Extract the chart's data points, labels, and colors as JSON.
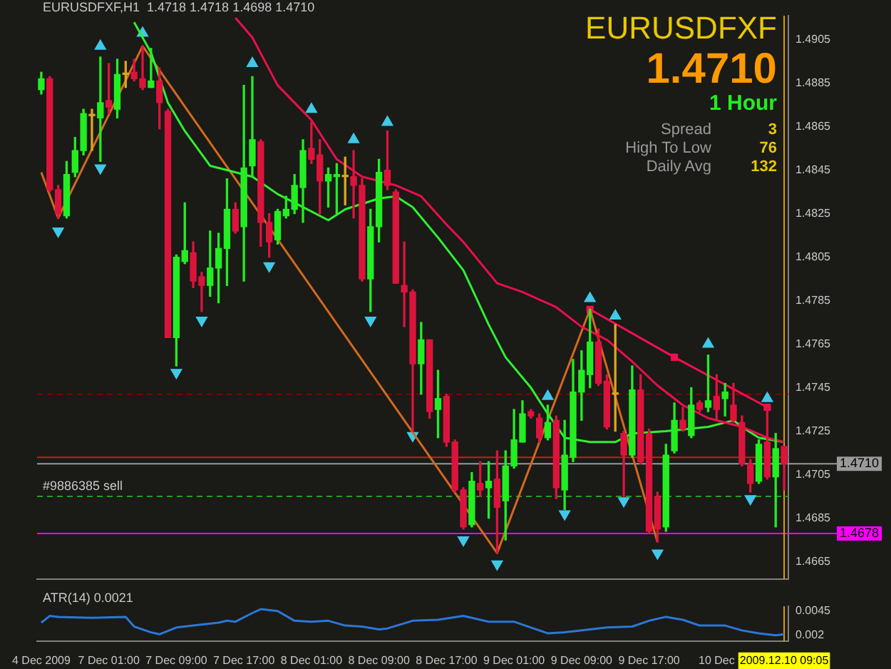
{
  "chart_data": [
    {
      "type": "candlestick",
      "title": "EURUSDFXF,H1  1.4718 1.4718 1.4698 1.4710",
      "tick_labels": "y",
      "categories": [
        "4 Dec 2009",
        null,
        null,
        null,
        null,
        null,
        null,
        null,
        "7 Dec 01:00",
        null,
        null,
        null,
        null,
        null,
        null,
        null,
        "7 Dec 09:00",
        null,
        null,
        null,
        null,
        null,
        null,
        null,
        "7 Dec 17:00",
        null,
        null,
        null,
        null,
        null,
        null,
        null,
        "8 Dec 01:00",
        null,
        null,
        null,
        null,
        null,
        null,
        null,
        "8 Dec 09:00",
        null,
        null,
        null,
        null,
        null,
        null,
        null,
        "8 Dec 17:00",
        null,
        null,
        null,
        null,
        null,
        null,
        null,
        "9 Dec 01:00",
        null,
        null,
        null,
        null,
        null,
        null,
        null,
        "9 Dec 09:00",
        null,
        null,
        null,
        null,
        null,
        null,
        null,
        "9 Dec 17:00",
        null,
        null,
        null,
        null,
        null,
        null,
        null,
        "10 Dec",
        null,
        null,
        null,
        null,
        null,
        null,
        null,
        "2009.12.10 09:05"
      ],
      "ylim": [
        1.4657,
        1.4916
      ],
      "yticks": [
        1.4905,
        1.4885,
        1.4865,
        1.4845,
        1.4825,
        1.4805,
        1.4785,
        1.4765,
        1.4745,
        1.4725,
        1.4705,
        1.4685,
        1.4665
      ],
      "ohlc": [
        [
          1.4882,
          1.489,
          1.488,
          1.4887
        ],
        [
          1.4887,
          1.4888,
          1.4835,
          1.4836
        ],
        [
          1.4836,
          1.4838,
          1.4823,
          1.4825
        ],
        [
          1.4824,
          1.4849,
          1.4823,
          1.4843
        ],
        [
          1.4844,
          1.486,
          1.4842,
          1.4854
        ],
        [
          1.4854,
          1.4873,
          1.4852,
          1.4871
        ],
        [
          1.487,
          1.4873,
          1.4854,
          1.487
        ],
        [
          1.4869,
          1.4897,
          1.4849,
          1.4876
        ],
        [
          1.4877,
          1.4894,
          1.4871,
          1.4874
        ],
        [
          1.4873,
          1.4896,
          1.4869,
          1.4889
        ],
        [
          1.4889,
          1.4895,
          1.4883,
          1.4889
        ],
        [
          1.489,
          1.4896,
          1.4886,
          1.4887
        ],
        [
          1.4887,
          1.4902,
          1.4882,
          1.4883
        ],
        [
          1.4883,
          1.4901,
          1.4883,
          1.4886
        ],
        [
          1.4886,
          1.4892,
          1.4864,
          1.4876
        ],
        [
          1.4872,
          1.4873,
          1.4768,
          1.4768
        ],
        [
          1.4768,
          1.4806,
          1.4755,
          1.4805
        ],
        [
          1.4803,
          1.483,
          1.4802,
          1.4808
        ],
        [
          1.4807,
          1.4812,
          1.4791,
          1.4794
        ],
        [
          1.4796,
          1.4798,
          1.478,
          1.4792
        ],
        [
          1.4792,
          1.4817,
          1.4787,
          1.48
        ],
        [
          1.48,
          1.4816,
          1.4784,
          1.4809
        ],
        [
          1.4809,
          1.4841,
          1.4792,
          1.4827
        ],
        [
          1.4827,
          1.483,
          1.4816,
          1.4817
        ],
        [
          1.4819,
          1.4884,
          1.4794,
          1.4846
        ],
        [
          1.4847,
          1.4888,
          1.4842,
          1.4859
        ],
        [
          1.4858,
          1.4859,
          1.481,
          1.4821
        ],
        [
          1.4821,
          1.4825,
          1.4805,
          1.4812
        ],
        [
          1.4813,
          1.4827,
          1.4811,
          1.4826
        ],
        [
          1.4824,
          1.4833,
          1.4823,
          1.4827
        ],
        [
          1.4827,
          1.4843,
          1.4825,
          1.4838
        ],
        [
          1.4837,
          1.4859,
          1.4821,
          1.4854
        ],
        [
          1.4855,
          1.4867,
          1.4848,
          1.485
        ],
        [
          1.4852,
          1.4859,
          1.4825,
          1.484
        ],
        [
          1.484,
          1.4846,
          1.4828,
          1.4843
        ],
        [
          1.4842,
          1.4848,
          1.4825,
          1.4843
        ],
        [
          1.4842,
          1.4851,
          1.4829,
          1.4842
        ],
        [
          1.4842,
          1.4854,
          1.4823,
          1.4838
        ],
        [
          1.4838,
          1.4841,
          1.4794,
          1.4795
        ],
        [
          1.4795,
          1.4827,
          1.478,
          1.4819
        ],
        [
          1.4819,
          1.485,
          1.4812,
          1.4844
        ],
        [
          1.4845,
          1.4863,
          1.4836,
          1.4838
        ],
        [
          1.4835,
          1.4836,
          1.4793,
          1.4793
        ],
        [
          1.4792,
          1.4812,
          1.4773,
          1.4789
        ],
        [
          1.4789,
          1.479,
          1.4725,
          1.4756
        ],
        [
          1.4756,
          1.4775,
          1.4742,
          1.4767
        ],
        [
          1.4767,
          1.4767,
          1.4731,
          1.4734
        ],
        [
          1.4735,
          1.4753,
          1.4722,
          1.474
        ],
        [
          1.4741,
          1.4742,
          1.4718,
          1.472
        ],
        [
          1.472,
          1.4721,
          1.4697,
          1.4698
        ],
        [
          1.4698,
          1.4699,
          1.468,
          1.4681
        ],
        [
          1.4682,
          1.4706,
          1.4681,
          1.4702
        ],
        [
          1.4701,
          1.4711,
          1.4695,
          1.4698
        ],
        [
          1.4699,
          1.4711,
          1.4685,
          1.4702
        ],
        [
          1.4703,
          1.4716,
          1.4669,
          1.469
        ],
        [
          1.4693,
          1.4716,
          1.4675,
          1.4709
        ],
        [
          1.4709,
          1.4735,
          1.4708,
          1.4721
        ],
        [
          1.472,
          1.4739,
          1.472,
          1.4733
        ],
        [
          1.4734,
          1.4735,
          1.4731,
          1.4732
        ],
        [
          1.4731,
          1.4733,
          1.472,
          1.4722
        ],
        [
          1.4722,
          1.4737,
          1.4721,
          1.4729
        ],
        [
          1.473,
          1.4732,
          1.4694,
          1.4699
        ],
        [
          1.4698,
          1.473,
          1.4689,
          1.4714
        ],
        [
          1.4713,
          1.4758,
          1.4711,
          1.4743
        ],
        [
          1.4743,
          1.4762,
          1.473,
          1.4753
        ],
        [
          1.4751,
          1.4781,
          1.4745,
          1.4766
        ],
        [
          1.4766,
          1.4772,
          1.4746,
          1.4747
        ],
        [
          1.4748,
          1.4751,
          1.4726,
          1.4727
        ],
        [
          1.4742,
          1.4774,
          1.4725,
          1.4742
        ],
        [
          1.4724,
          1.4725,
          1.4695,
          1.4714
        ],
        [
          1.4714,
          1.4755,
          1.4713,
          1.4744
        ],
        [
          1.4744,
          1.4751,
          1.471,
          1.4711
        ],
        [
          1.4724,
          1.4726,
          1.4678,
          1.4679
        ],
        [
          1.4695,
          1.4697,
          1.4674,
          1.468
        ],
        [
          1.4681,
          1.4719,
          1.4679,
          1.4714
        ],
        [
          1.4716,
          1.4738,
          1.4715,
          1.473
        ],
        [
          1.473,
          1.4736,
          1.4725,
          1.4726
        ],
        [
          1.4723,
          1.4745,
          1.4722,
          1.4737
        ],
        [
          1.4738,
          1.4739,
          1.4734,
          1.4735
        ],
        [
          1.4736,
          1.476,
          1.4734,
          1.4739
        ],
        [
          1.4741,
          1.4751,
          1.473,
          1.4735
        ],
        [
          1.474,
          1.4747,
          1.4732,
          1.4743
        ],
        [
          1.4737,
          1.4747,
          1.4729,
          1.473
        ],
        [
          1.4729,
          1.4732,
          1.4709,
          1.471
        ],
        [
          1.471,
          1.4712,
          1.4697,
          1.4701
        ],
        [
          1.4702,
          1.4721,
          1.4701,
          1.4719
        ],
        [
          1.472,
          1.4736,
          1.4703,
          1.4704
        ],
        [
          1.4704,
          1.4724,
          1.4681,
          1.4717
        ],
        [
          1.4718,
          1.4718,
          1.4698,
          1.471
        ]
      ],
      "colors": [
        "#22ee22",
        "#dc143c",
        "#dc143c",
        "#22ee22",
        "#22ee22",
        "#22ee22",
        "#daa520",
        "#22ee22",
        "#dc143c",
        "#22ee22",
        "#daa520",
        "#dc143c",
        "#dc143c",
        "#22ee22",
        "#dc143c",
        "#dc143c",
        "#22ee22",
        "#22ee22",
        "#dc143c",
        "#dc143c",
        "#22ee22",
        "#22ee22",
        "#22ee22",
        "#dc143c",
        "#22ee22",
        "#22ee22",
        "#dc143c",
        "#dc143c",
        "#22ee22",
        "#22ee22",
        "#22ee22",
        "#22ee22",
        "#dc143c",
        "#dc143c",
        "#22ee22",
        "#22ee22",
        "#daa520",
        "#dc143c",
        "#dc143c",
        "#22ee22",
        "#22ee22",
        "#dc143c",
        "#dc143c",
        "#dc143c",
        "#dc143c",
        "#22ee22",
        "#dc143c",
        "#22ee22",
        "#dc143c",
        "#dc143c",
        "#dc143c",
        "#22ee22",
        "#dc143c",
        "#22ee22",
        "#dc143c",
        "#22ee22",
        "#22ee22",
        "#22ee22",
        "#dc143c",
        "#dc143c",
        "#22ee22",
        "#dc143c",
        "#22ee22",
        "#22ee22",
        "#22ee22",
        "#22ee22",
        "#dc143c",
        "#dc143c",
        "#daa520",
        "#dc143c",
        "#22ee22",
        "#dc143c",
        "#dc143c",
        "#dc143c",
        "#22ee22",
        "#22ee22",
        "#dc143c",
        "#22ee22",
        "#dc143c",
        "#22ee22",
        "#dc143c",
        "#22ee22",
        "#dc143c",
        "#dc143c",
        "#dc143c",
        "#22ee22",
        "#dc143c",
        "#22ee22",
        "#dc143c"
      ],
      "series": [
        {
          "type": "line",
          "color": "#e8104a",
          "values": [
            null,
            null,
            null,
            null,
            null,
            null,
            null,
            null,
            null,
            null,
            null,
            null,
            null,
            null,
            null,
            null,
            null,
            null,
            null,
            null,
            null,
            null,
            null,
            1.4915,
            null,
            1.4906,
            null,
            null,
            1.4884,
            null,
            null,
            null,
            1.4868,
            null,
            null,
            1.485,
            null,
            null,
            1.4842,
            null,
            null,
            null,
            1.4838,
            null,
            null,
            1.4833,
            null,
            null,
            1.482,
            null,
            1.4812,
            null,
            null,
            null,
            1.4793,
            null,
            null,
            1.4789,
            null,
            null,
            null,
            1.4782,
            null,
            null,
            1.4773,
            null,
            null,
            1.4767,
            null,
            null,
            1.4757,
            null,
            null,
            1.4746,
            null,
            null,
            1.4737,
            null,
            null,
            1.4731,
            null,
            null,
            null,
            1.4727,
            null,
            null,
            1.4722,
            null,
            1.472
          ]
        },
        {
          "type": "line",
          "color": "#30f030",
          "values": [
            null,
            null,
            null,
            null,
            null,
            null,
            null,
            null,
            null,
            null,
            null,
            1.4913,
            null,
            1.4899,
            null,
            1.4876,
            null,
            1.4863,
            null,
            null,
            1.4847,
            null,
            1.4845,
            null,
            null,
            1.4842,
            null,
            null,
            1.4834,
            null,
            null,
            1.4828,
            null,
            null,
            1.4822,
            null,
            1.4827,
            null,
            null,
            null,
            1.4832,
            null,
            1.4833,
            null,
            1.4828,
            null,
            null,
            1.4814,
            null,
            null,
            1.4799,
            null,
            null,
            1.4774,
            null,
            1.4759,
            null,
            null,
            1.4745,
            null,
            1.4733,
            null,
            1.4722,
            null,
            null,
            1.472,
            null,
            null,
            1.472,
            null,
            1.4724,
            null,
            null,
            null,
            1.4725,
            null,
            null,
            null,
            null,
            1.4727,
            null,
            null,
            1.473,
            1.4727,
            null,
            1.4722,
            null,
            null,
            1.472
          ]
        },
        {
          "type": "line",
          "color": "#d2691e",
          "values": [
            1.4844,
            null,
            1.4823,
            null,
            null,
            null,
            null,
            null,
            null,
            null,
            null,
            null,
            1.4902,
            null,
            null,
            null,
            null,
            null,
            null,
            null,
            null,
            null,
            null,
            null,
            null,
            null,
            null,
            null,
            null,
            null,
            null,
            null,
            null,
            null,
            null,
            null,
            null,
            null,
            null,
            null,
            null,
            null,
            null,
            null,
            null,
            null,
            null,
            null,
            null,
            null,
            null,
            null,
            null,
            null,
            1.4669,
            null,
            null,
            null,
            null,
            null,
            null,
            null,
            null,
            null,
            null,
            1.4781,
            null,
            null,
            null,
            null,
            null,
            null,
            null,
            1.4674,
            null,
            null,
            null,
            null,
            null,
            null,
            null,
            null,
            null,
            null,
            null,
            null,
            null,
            null,
            null
          ]
        },
        {
          "type": "line",
          "color": "#f01050",
          "marker": "square",
          "values": [
            null,
            null,
            null,
            null,
            null,
            null,
            null,
            null,
            null,
            null,
            null,
            null,
            null,
            null,
            null,
            null,
            null,
            null,
            null,
            null,
            null,
            null,
            null,
            null,
            null,
            null,
            null,
            null,
            null,
            null,
            null,
            null,
            null,
            null,
            null,
            null,
            null,
            null,
            null,
            null,
            null,
            null,
            null,
            null,
            null,
            null,
            null,
            null,
            null,
            null,
            null,
            null,
            null,
            null,
            null,
            null,
            null,
            null,
            null,
            null,
            null,
            null,
            null,
            null,
            null,
            1.4781,
            null,
            null,
            null,
            null,
            null,
            null,
            null,
            null,
            null,
            1.4759,
            null,
            null,
            null,
            null,
            null,
            null,
            null,
            null,
            null,
            null,
            1.4736,
            null,
            null
          ]
        },
        {
          "type": "scatter",
          "color": "#40c8e8",
          "marker": "triangle",
          "values": [
            null,
            null,
            null,
            null,
            null,
            null,
            null,
            1.4902,
            null,
            null,
            null,
            null,
            1.4908,
            null,
            null,
            null,
            null,
            null,
            null,
            null,
            null,
            null,
            null,
            null,
            null,
            1.4894,
            null,
            null,
            null,
            null,
            null,
            null,
            1.4873,
            null,
            null,
            null,
            null,
            1.4859,
            null,
            null,
            null,
            1.4867,
            null,
            null,
            null,
            null,
            null,
            null,
            null,
            null,
            null,
            null,
            null,
            null,
            null,
            null,
            null,
            null,
            null,
            null,
            1.4741,
            null,
            null,
            null,
            null,
            1.4786,
            null,
            null,
            1.4778,
            null,
            null,
            null,
            null,
            null,
            null,
            null,
            null,
            null,
            null,
            1.4765,
            null,
            null,
            null,
            null,
            null,
            null,
            1.474,
            null,
            null
          ]
        },
        {
          "type": "scatter",
          "color": "#40c8e8",
          "marker": "triangle",
          "values": [
            null,
            null,
            1.4817,
            null,
            null,
            null,
            null,
            1.4846,
            null,
            null,
            null,
            null,
            null,
            null,
            null,
            null,
            1.4752,
            null,
            null,
            1.4776,
            null,
            null,
            null,
            null,
            null,
            null,
            null,
            1.4801,
            null,
            null,
            null,
            null,
            null,
            null,
            null,
            null,
            null,
            null,
            null,
            1.4776,
            null,
            null,
            null,
            null,
            1.4723,
            null,
            null,
            null,
            null,
            null,
            1.4675,
            null,
            null,
            null,
            1.4664,
            null,
            null,
            null,
            null,
            null,
            null,
            null,
            1.4687,
            null,
            null,
            null,
            null,
            null,
            null,
            1.4693,
            null,
            null,
            null,
            1.4669,
            null,
            null,
            null,
            null,
            null,
            null,
            null,
            null,
            null,
            null,
            1.4694,
            null,
            null,
            null,
            null
          ]
        }
      ],
      "ref_lines": [
        {
          "axis": "y",
          "value": 1.4742,
          "color": "#8b0000",
          "line_style": "dashed"
        },
        {
          "axis": "y",
          "value": 1.4713,
          "color": "#c81e1e"
        },
        {
          "axis": "y",
          "value": 1.471,
          "label": "1.4710",
          "color": "#9a9a9a"
        },
        {
          "axis": "y",
          "value": 1.4695,
          "label": "#9886385 sell",
          "color": "#20a020",
          "line_style": "dashed"
        },
        {
          "axis": "y",
          "value": 1.4678,
          "label": "1.4678",
          "color": "#ff00ff"
        },
        {
          "axis": "x",
          "value": "2009.12.10 09:05",
          "color": "#e0a000"
        }
      ],
      "annotations": [
        "EURUSDFXF",
        "1.4710",
        "1 Hour",
        "Spread",
        "3",
        "High To Low",
        "76",
        "Daily Avg",
        "132"
      ]
    },
    {
      "type": "line",
      "title": "ATR(14) 0.0021",
      "categories": [
        "4 Dec 2009",
        null,
        null,
        null,
        null,
        null,
        null,
        null,
        "7 Dec 01:00",
        null,
        null,
        null,
        null,
        null,
        null,
        null,
        "7 Dec 09:00",
        null,
        null,
        null,
        null,
        null,
        null,
        null,
        "7 Dec 17:00",
        null,
        null,
        null,
        null,
        null,
        null,
        null,
        "8 Dec 01:00",
        null,
        null,
        null,
        null,
        null,
        null,
        null,
        "8 Dec 09:00",
        null,
        null,
        null,
        null,
        null,
        null,
        null,
        "8 Dec 17:00",
        null,
        null,
        null,
        null,
        null,
        null,
        null,
        "9 Dec 01:00",
        null,
        null,
        null,
        null,
        null,
        null,
        null,
        "9 Dec 09:00",
        null,
        null,
        null,
        null,
        null,
        null,
        null,
        "9 Dec 17:00",
        null,
        null,
        null,
        null,
        null,
        null,
        null,
        "10 Dec",
        null,
        null,
        null,
        null,
        null,
        null,
        null,
        "2009.12.10 09:05"
      ],
      "ylim": [
        0.0014,
        0.005
      ],
      "yticks": [
        0.0045,
        0.002
      ],
      "series": [
        {
          "color": "#2a78d8",
          "values": [
            0.0033,
            0.004,
            0.0039,
            null,
            null,
            null,
            0.0038,
            null,
            null,
            null,
            0.0039,
            0.0029,
            null,
            0.0023,
            0.0021,
            null,
            0.0028,
            null,
            0.003,
            null,
            null,
            0.0033,
            0.0035,
            0.0034,
            null,
            0.0043,
            0.0047,
            null,
            0.0045,
            null,
            0.0035,
            null,
            0.0034,
            null,
            0.0035,
            null,
            0.003,
            null,
            0.0029,
            null,
            0.0026,
            0.0027,
            null,
            null,
            0.0035,
            null,
            null,
            0.0036,
            null,
            null,
            0.004,
            0.0038,
            null,
            0.0034,
            null,
            null,
            0.0034,
            null,
            0.0028,
            null,
            0.0022,
            null,
            0.0023,
            null,
            null,
            0.0026,
            null,
            0.0028,
            null,
            null,
            0.0029,
            null,
            0.0035,
            null,
            0.0039,
            null,
            0.0036,
            null,
            0.003,
            null,
            null,
            0.003,
            null,
            0.0025,
            null,
            0.0022,
            null,
            0.002,
            0.0021
          ]
        }
      ],
      "ref_lines": [
        {
          "axis": "x",
          "value": "2009.12.10 09:05",
          "color": "#e0a000"
        }
      ]
    }
  ]
}
